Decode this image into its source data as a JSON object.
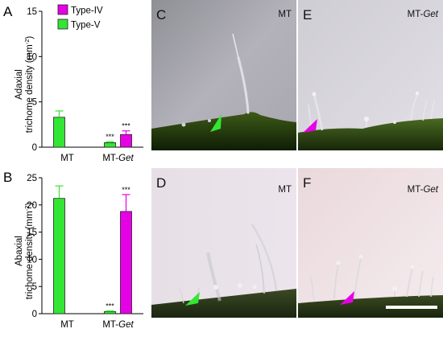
{
  "chart_data": [
    {
      "panel": "A",
      "type": "bar",
      "ylabel_line1": "Adaxial",
      "ylabel_line2": "trichome density (mm",
      "ylabel_sup": "-2",
      "ylabel_close": ")",
      "ylim": [
        0,
        15
      ],
      "yticks": [
        "0",
        "5",
        "10",
        "15"
      ],
      "categories": [
        {
          "label": "MT",
          "italic": ""
        },
        {
          "label": "MT-",
          "italic": "Get"
        }
      ],
      "legend": [
        {
          "name": "Type-IV",
          "color": "#e600e6"
        },
        {
          "name": "Type-V",
          "color": "#33e633"
        }
      ],
      "series": [
        {
          "name": "Type-V",
          "color": "#33e633",
          "values": [
            3.3,
            0.5
          ],
          "errors": [
            0.7,
            0.1
          ],
          "sig": [
            "",
            "***"
          ]
        },
        {
          "name": "Type-IV",
          "color": "#e600e6",
          "values": [
            0,
            1.4
          ],
          "errors": [
            0,
            0.4
          ],
          "sig": [
            "",
            "***"
          ]
        }
      ]
    },
    {
      "panel": "B",
      "type": "bar",
      "ylabel_line1": "Abaxial",
      "ylabel_line2": "trichome density (mm",
      "ylabel_sup": "-2",
      "ylabel_close": ")",
      "ylim": [
        0,
        25
      ],
      "yticks": [
        "0",
        "5",
        "10",
        "15",
        "20",
        "25"
      ],
      "categories": [
        {
          "label": "MT",
          "italic": ""
        },
        {
          "label": "MT-",
          "italic": "Get"
        }
      ],
      "series": [
        {
          "name": "Type-V",
          "color": "#33e633",
          "values": [
            21.2,
            0.4
          ],
          "errors": [
            2.3,
            0.1
          ],
          "sig": [
            "",
            "***"
          ]
        },
        {
          "name": "Type-IV",
          "color": "#e600e6",
          "values": [
            0,
            18.8
          ],
          "errors": [
            0,
            3.1
          ],
          "sig": [
            "",
            "***"
          ]
        }
      ]
    }
  ],
  "photos": [
    {
      "panel": "C",
      "caption": "MT",
      "caption_italic": ""
    },
    {
      "panel": "D",
      "caption": "MT",
      "caption_italic": ""
    },
    {
      "panel": "E",
      "caption": "MT-",
      "caption_italic": "Get"
    },
    {
      "panel": "F",
      "caption": "MT-",
      "caption_italic": "Get"
    }
  ],
  "colors": {
    "type_iv": "#e600e6",
    "type_v": "#33e633"
  }
}
